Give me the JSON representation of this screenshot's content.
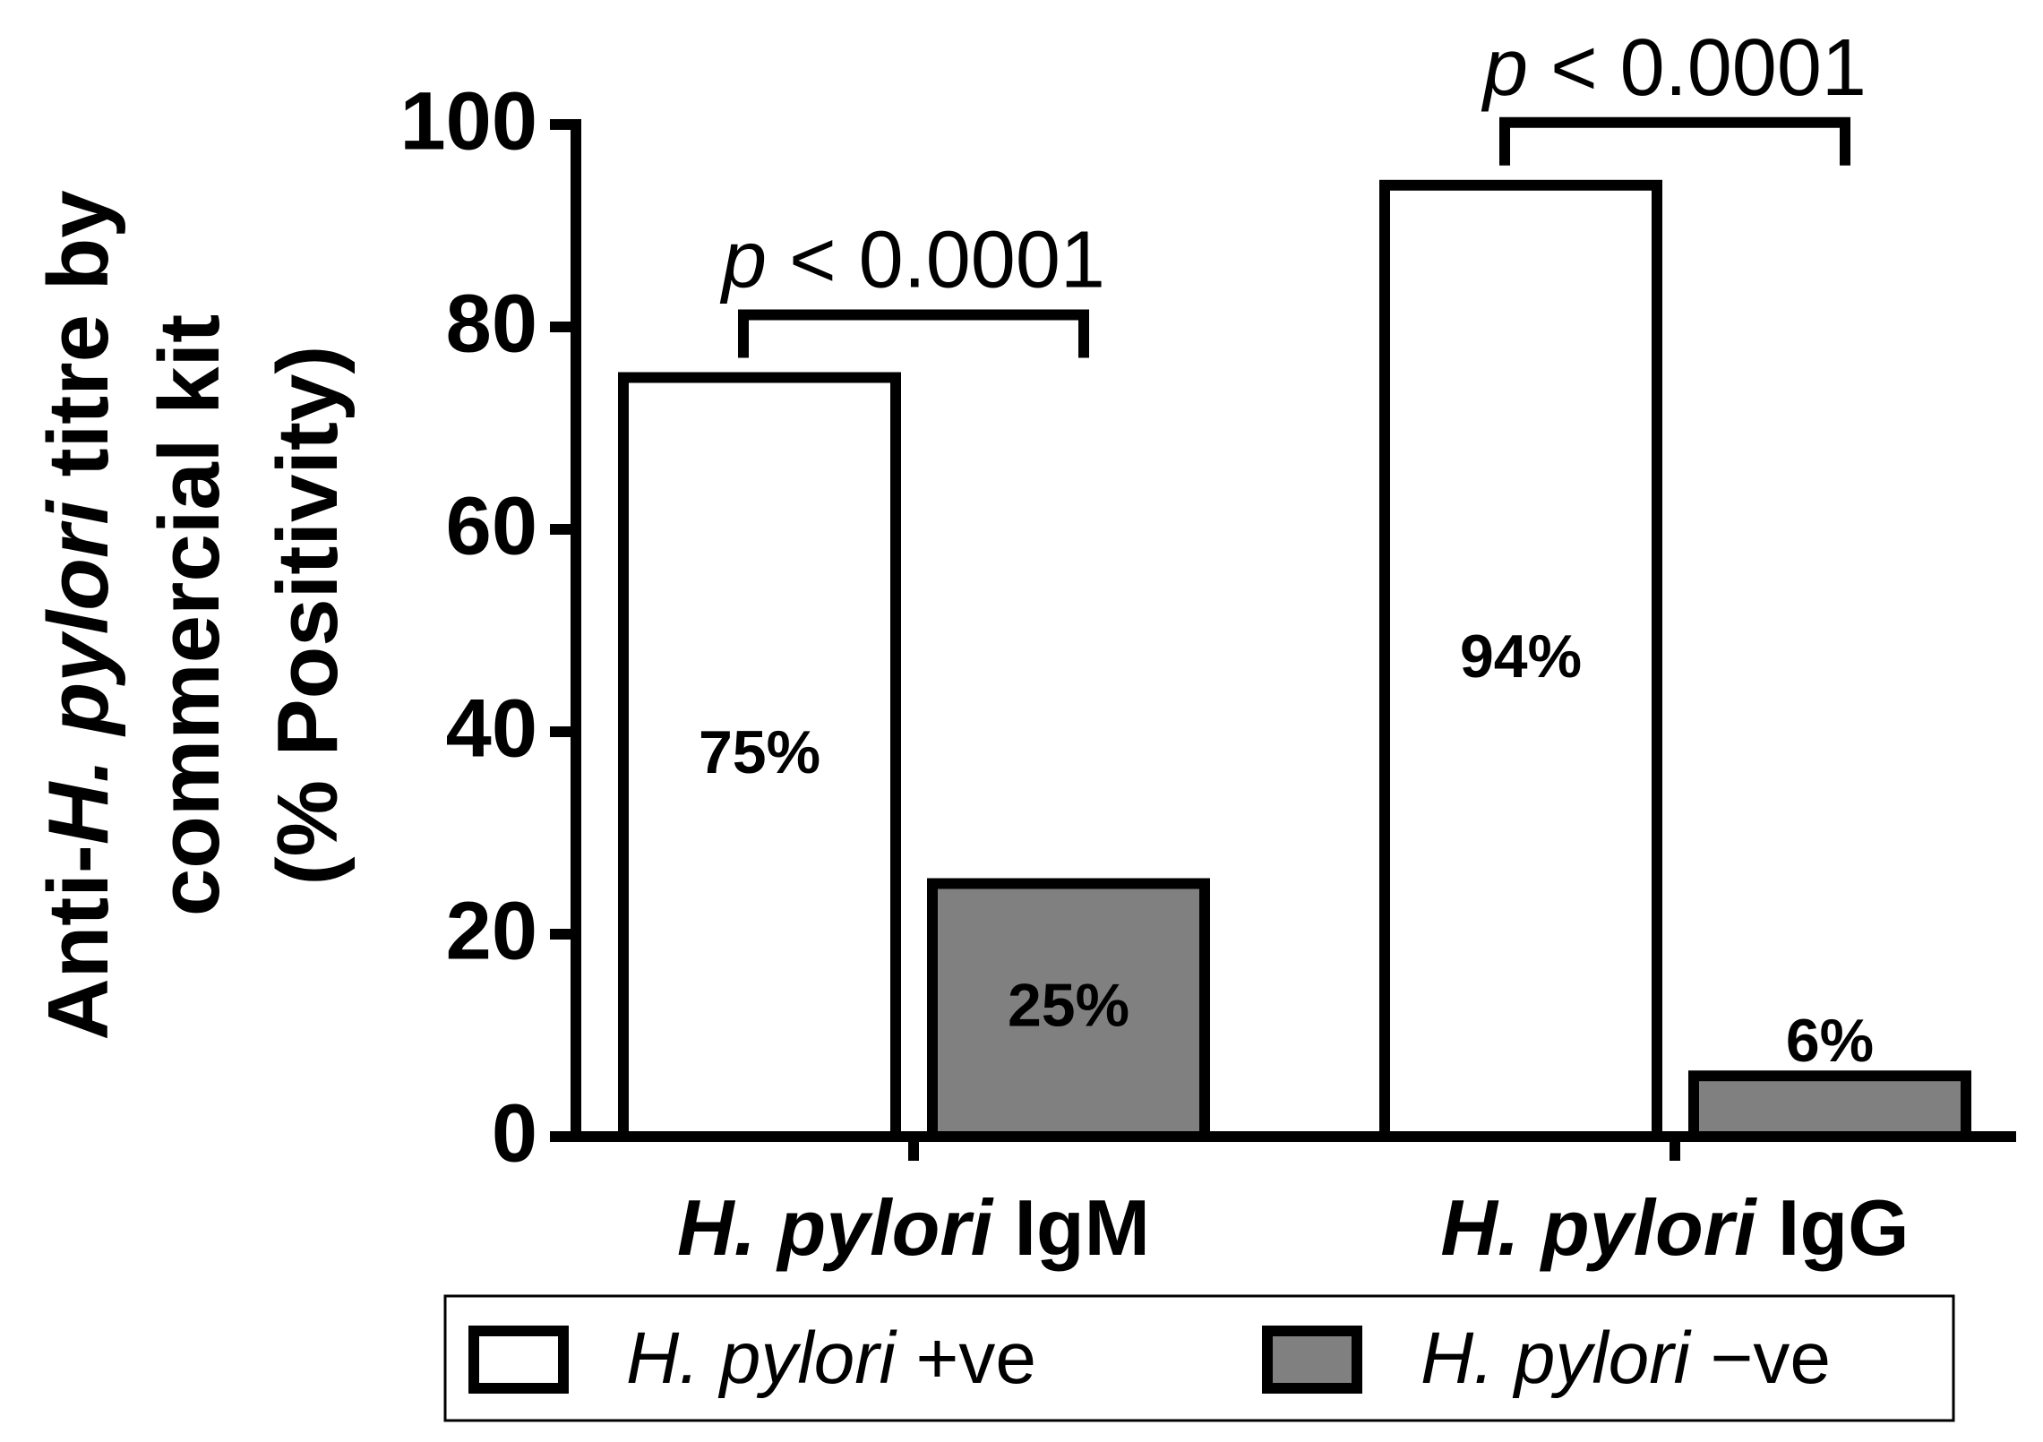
{
  "chart_data": {
    "type": "bar",
    "y_label": [
      [
        {
          "text": "Anti-"
        },
        {
          "text": "H. pylori",
          "italic": true
        },
        {
          "text": " titre by"
        }
      ],
      [
        {
          "text": "commercial kit"
        }
      ],
      [
        {
          "text": "(% Positivity)"
        }
      ]
    ],
    "categories": [
      "H. pylori IgM",
      "H. pylori IgG"
    ],
    "series": [
      {
        "name": "H. pylori +ve",
        "color": "#ffffff",
        "values": [
          75,
          94
        ],
        "value_labels": [
          "75%",
          "94%"
        ]
      },
      {
        "name": "H. pylori −ve",
        "color": "#808080",
        "values": [
          25,
          6
        ],
        "value_labels": [
          "25%",
          "6%"
        ]
      }
    ],
    "comparisons": [
      "p < 0.0001",
      "p < 0.0001"
    ],
    "ylim": [
      0,
      100
    ],
    "yticks": [
      0,
      20,
      40,
      60,
      80,
      100
    ],
    "legend": "bottom"
  }
}
